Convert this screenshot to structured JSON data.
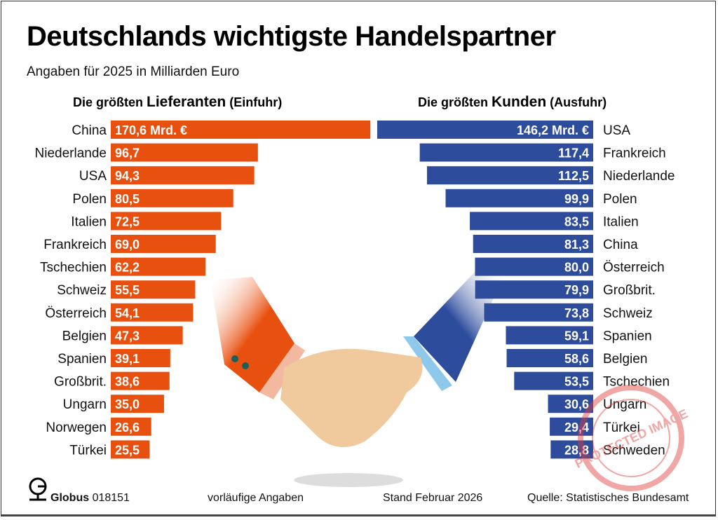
{
  "title": "Deutschlands wichtigste Handelspartner",
  "subtitle": "Angaben für 2025 in Milliarden Euro",
  "chart_data": [
    {
      "type": "bar",
      "orientation": "horizontal",
      "title_prefix": "Die größten ",
      "title_main": "Lieferanten",
      "title_suffix": " (Einfuhr)",
      "unit_label": "Mrd. €",
      "color": "#e8500f",
      "categories": [
        "China",
        "Niederlande",
        "USA",
        "Polen",
        "Italien",
        "Frankreich",
        "Tschechien",
        "Schweiz",
        "Österreich",
        "Belgien",
        "Spanien",
        "Großbrit.",
        "Ungarn",
        "Norwegen",
        "Türkei"
      ],
      "values": [
        170.6,
        96.7,
        94.3,
        80.5,
        72.5,
        69.0,
        62.2,
        55.5,
        54.1,
        47.3,
        39.1,
        38.6,
        35.0,
        26.6,
        25.5
      ],
      "labels": [
        "170,6 Mrd. €",
        "96,7",
        "94,3",
        "80,5",
        "72,5",
        "69,0",
        "62,2",
        "55,5",
        "54,1",
        "47,3",
        "39,1",
        "38,6",
        "35,0",
        "26,6",
        "25,5"
      ]
    },
    {
      "type": "bar",
      "orientation": "horizontal",
      "title_prefix": "Die größten ",
      "title_main": "Kunden",
      "title_suffix": " (Ausfuhr)",
      "unit_label": "Mrd. €",
      "color": "#2d4c9c",
      "categories": [
        "USA",
        "Frankreich",
        "Niederlande",
        "Polen",
        "Italien",
        "China",
        "Österreich",
        "Großbrit.",
        "Schweiz",
        "Spanien",
        "Belgien",
        "Tschechien",
        "Ungarn",
        "Türkei",
        "Schweden"
      ],
      "values": [
        146.2,
        117.4,
        112.5,
        99.9,
        83.5,
        81.3,
        80.0,
        79.9,
        73.8,
        59.1,
        58.6,
        53.5,
        30.6,
        29.4,
        28.8
      ],
      "labels": [
        "146,2 Mrd. €",
        "117,4",
        "112,5",
        "99,9",
        "83,5",
        "81,3",
        "80,0",
        "79,9",
        "73,8",
        "59,1",
        "58,6",
        "53,5",
        "30,6",
        "29,4",
        "28,8"
      ]
    }
  ],
  "footer": {
    "brand": "Globus",
    "code": "018151",
    "note": "vorläufige Angaben",
    "date": "Stand Februar 2026",
    "source": "Quelle: Statistisches Bundesamt"
  },
  "watermark": "PROTECTED IMAGE"
}
